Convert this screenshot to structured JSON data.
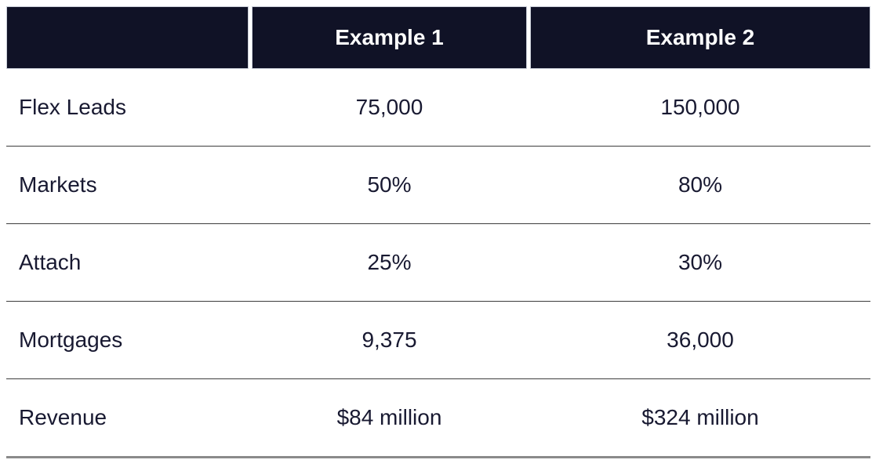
{
  "chart_data": {
    "type": "table",
    "columns": [
      "",
      "Example 1",
      "Example 2"
    ],
    "rows": [
      [
        "Flex Leads",
        "75,000",
        "150,000"
      ],
      [
        "Markets",
        "50%",
        "80%"
      ],
      [
        "Attach",
        "25%",
        "30%"
      ],
      [
        "Mortgages",
        "9,375",
        "36,000"
      ],
      [
        "Revenue",
        "$84 million",
        "$324 million"
      ]
    ],
    "layout": {
      "header_position": "top",
      "value_alignment": "center",
      "label_alignment": "left"
    }
  },
  "colors": {
    "header_bg": "#101226",
    "header_text": "#ffffff",
    "body_text": "#181931",
    "row_divider": "#3d3d3d",
    "bottom_border": "#8a8a8a",
    "header_cell_border": "#c9ced8"
  }
}
